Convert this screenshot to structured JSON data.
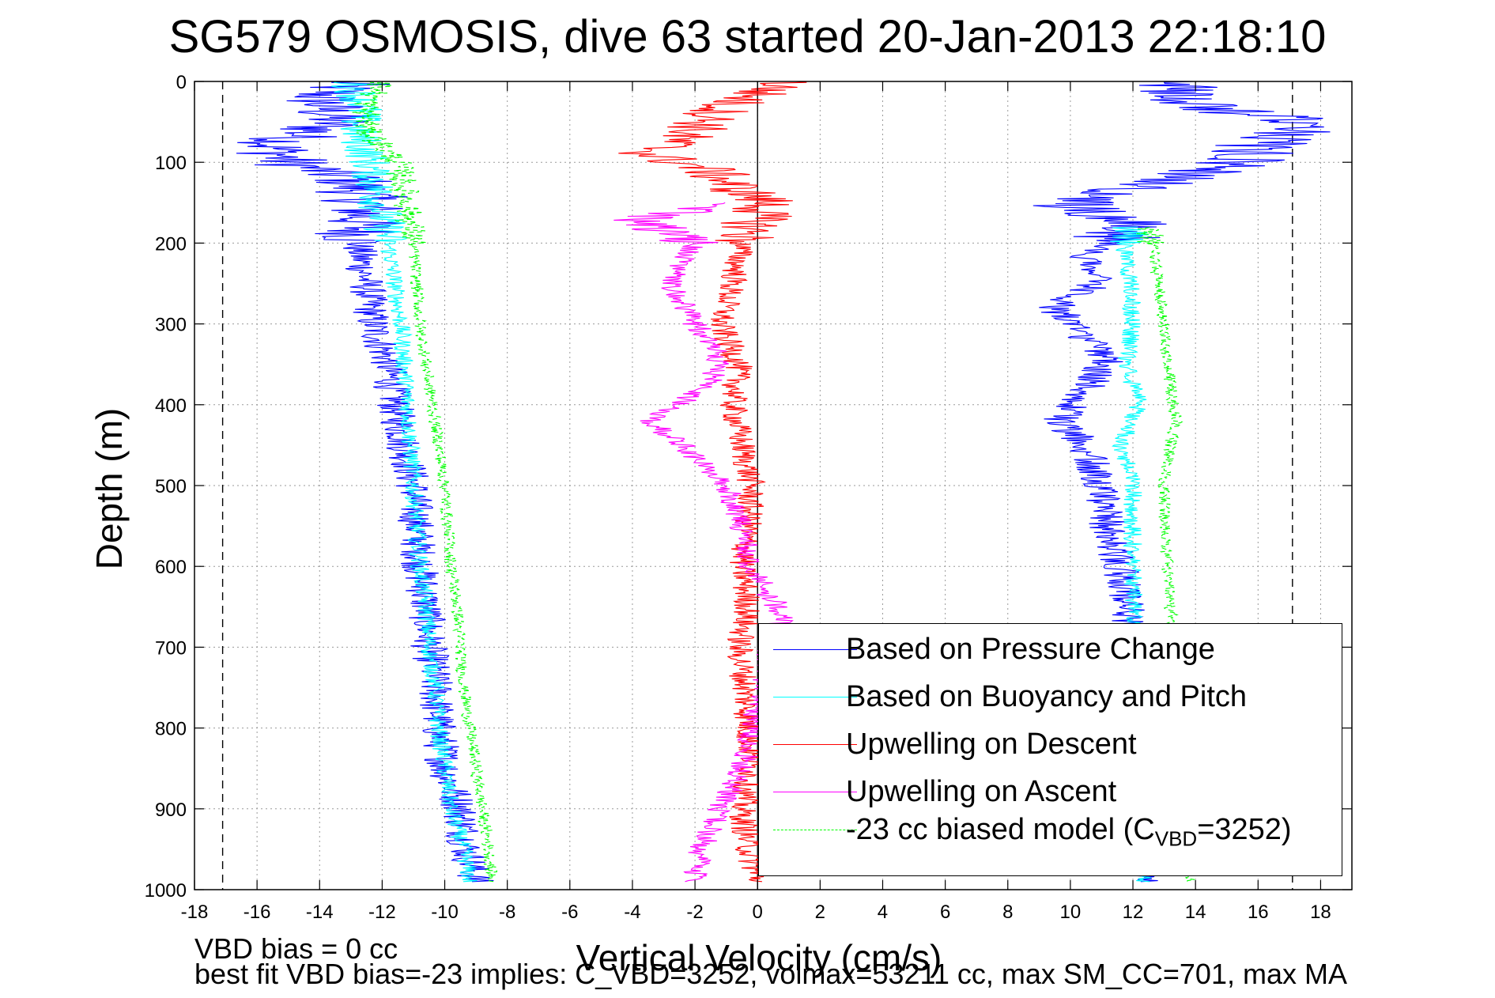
{
  "title": "SG579 OSMOSIS, dive 63 started 20-Jan-2013 22:18:10",
  "notes": {
    "vbd_bias": "VBD bias = 0 cc",
    "best_fit": "best fit VBD bias=-23 implies: C_VBD=3252, volmax=53211 cc, max SM_CC=701, max MA"
  },
  "chart_data": {
    "type": "line",
    "title": "SG579 OSMOSIS, dive 63 started 20-Jan-2013 22:18:10",
    "xlabel": "Vertical Velocity (cm/s)",
    "ylabel": "Depth (m)",
    "xlim": [
      -18,
      19
    ],
    "ylim": [
      0,
      1000
    ],
    "y_reversed": true,
    "grid": true,
    "legend_position": "bottom-right",
    "x_ticks": [
      -18,
      -16,
      -14,
      -12,
      -10,
      -8,
      -6,
      -4,
      -2,
      0,
      2,
      4,
      6,
      8,
      10,
      12,
      14,
      16,
      18
    ],
    "y_ticks": [
      0,
      100,
      200,
      300,
      400,
      500,
      600,
      700,
      800,
      900,
      1000
    ],
    "reference_lines": [
      {
        "x": -17.1,
        "style": "dashed",
        "color": "#000000"
      },
      {
        "x": 17.1,
        "style": "dashed",
        "color": "#000000"
      },
      {
        "x": 0,
        "style": "solid",
        "color": "#000000"
      }
    ],
    "legend": [
      {
        "name": "Based on Pressure Change",
        "color": "#0000ff",
        "style": "solid"
      },
      {
        "name": "Based on Buoyancy and Pitch",
        "color": "#00ffff",
        "style": "solid"
      },
      {
        "name": "Upwelling on Descent",
        "color": "#ff0000",
        "style": "solid"
      },
      {
        "name": "Upwelling on Ascent",
        "color": "#ff00ff",
        "style": "solid"
      },
      {
        "name_main": "-23 cc biased model (C",
        "name_sub": "VBD",
        "name_end": "=3252)",
        "color": "#00ff00",
        "style": "dashed"
      }
    ],
    "series": [
      {
        "name": "Based on Pressure Change",
        "color": "#0000ff",
        "noise": 0.6,
        "descent": {
          "depth": [
            0,
            20,
            50,
            80,
            100,
            120,
            150,
            200,
            250,
            300,
            350,
            400,
            450,
            500,
            550,
            600,
            650,
            700,
            750,
            800,
            850,
            900,
            950,
            990
          ],
          "v": [
            -13,
            -14,
            -13.5,
            -15.5,
            -15,
            -13,
            -12.5,
            -12.8,
            -12.5,
            -12.3,
            -11.8,
            -11.6,
            -11.3,
            -11,
            -10.9,
            -10.8,
            -10.6,
            -10.5,
            -10.3,
            -10.2,
            -10,
            -9.5,
            -9.3,
            -9
          ]
        },
        "ascent": {
          "depth": [
            990,
            950,
            900,
            850,
            800,
            750,
            700,
            650,
            600,
            550,
            500,
            450,
            420,
            380,
            340,
            300,
            280,
            250,
            220,
            200,
            180,
            150,
            120,
            100,
            80,
            50,
            30,
            10,
            0
          ],
          "v": [
            12.5,
            12.5,
            12.3,
            12.2,
            12,
            12,
            12,
            11.8,
            11.6,
            11.2,
            11,
            10.5,
            9.6,
            10.5,
            11.2,
            10,
            9.5,
            10.8,
            10.5,
            11.2,
            12,
            10,
            13.5,
            15.5,
            16,
            17.5,
            14,
            13.5,
            13
          ]
        }
      },
      {
        "name": "Based on Buoyancy and Pitch",
        "color": "#00ffff",
        "noise": 0.3,
        "descent": {
          "depth": [
            0,
            30,
            60,
            100,
            150,
            200,
            250,
            300,
            350,
            400,
            450,
            500,
            550,
            600,
            650,
            700,
            750,
            800,
            850,
            900,
            950,
            990
          ],
          "v": [
            -13,
            -12.6,
            -12.8,
            -12.4,
            -12.1,
            -11.8,
            -11.6,
            -11.4,
            -11.3,
            -11.2,
            -11.1,
            -11,
            -10.9,
            -10.8,
            -10.6,
            -10.5,
            -10.3,
            -10.2,
            -10,
            -9.8,
            -9.4,
            -9.2
          ]
        },
        "ascent": {
          "depth": [
            990,
            950,
            900,
            850,
            800,
            750,
            700,
            650,
            600,
            550,
            500,
            450,
            400,
            350,
            300,
            250,
            200,
            180
          ],
          "v": [
            12.3,
            12.3,
            12.2,
            12.2,
            12.1,
            12.1,
            12,
            12,
            12,
            12,
            12,
            11.6,
            12.2,
            11.8,
            12,
            11.9,
            11.7,
            12
          ]
        }
      },
      {
        "name": "Upwelling on Descent",
        "color": "#ff0000",
        "noise": 0.45,
        "descent": {
          "depth": [
            0,
            30,
            60,
            90,
            110,
            130,
            150,
            200,
            250,
            300,
            350,
            400,
            450,
            500,
            550,
            600,
            650,
            700,
            750,
            800,
            850,
            900,
            950,
            990
          ],
          "v": [
            1,
            -1,
            -2,
            -3.5,
            -1.5,
            -0.8,
            0.3,
            -0.5,
            -0.8,
            -1.2,
            -0.6,
            -0.8,
            -0.5,
            -0.2,
            -0.3,
            -0.5,
            -0.3,
            -0.6,
            -0.4,
            -0.3,
            -0.2,
            -0.5,
            -0.3,
            0
          ]
        },
        "ascent": {
          "depth": [],
          "v": []
        }
      },
      {
        "name": "Upwelling on Ascent",
        "color": "#ff00ff",
        "noise": 0.4,
        "descent": {
          "depth": [],
          "v": []
        },
        "ascent": {
          "depth": [
            990,
            950,
            900,
            850,
            800,
            750,
            700,
            660,
            600,
            550,
            500,
            450,
            420,
            400,
            370,
            340,
            300,
            250,
            200,
            170,
            150
          ],
          "v": [
            -2,
            -1.8,
            -1.2,
            -0.5,
            -0.2,
            0.2,
            0.4,
            0.8,
            -0.2,
            -0.5,
            -1,
            -2.4,
            -3.5,
            -2.5,
            -1.5,
            -1.2,
            -2,
            -2.8,
            -2,
            -3.8,
            -0.5
          ]
        }
      },
      {
        "name": "-23 cc biased model (C_VBD=3252)",
        "color": "#00ff00",
        "dashed": true,
        "noise": 0.2,
        "descent": {
          "depth": [
            0,
            30,
            60,
            100,
            150,
            200,
            250,
            300,
            350,
            400,
            450,
            500,
            550,
            600,
            650,
            700,
            750,
            800,
            850,
            900,
            950,
            990
          ],
          "v": [
            -12,
            -12.5,
            -12.5,
            -11.5,
            -11.2,
            -11,
            -10.9,
            -10.8,
            -10.6,
            -10.4,
            -10.2,
            -10,
            -9.9,
            -9.8,
            -9.6,
            -9.5,
            -9.4,
            -9.2,
            -9,
            -8.8,
            -8.6,
            -8.5
          ]
        },
        "ascent": {
          "depth": [
            990,
            950,
            900,
            850,
            800,
            750,
            700,
            650,
            600,
            550,
            500,
            450,
            420,
            400,
            350,
            300,
            250,
            200,
            180
          ],
          "v": [
            13.8,
            13.6,
            13.5,
            13.4,
            13.4,
            13.3,
            13.3,
            13.2,
            13.1,
            13,
            13,
            13.2,
            13.4,
            13.3,
            13.1,
            13,
            12.8,
            12.6,
            12.5
          ]
        }
      }
    ]
  }
}
